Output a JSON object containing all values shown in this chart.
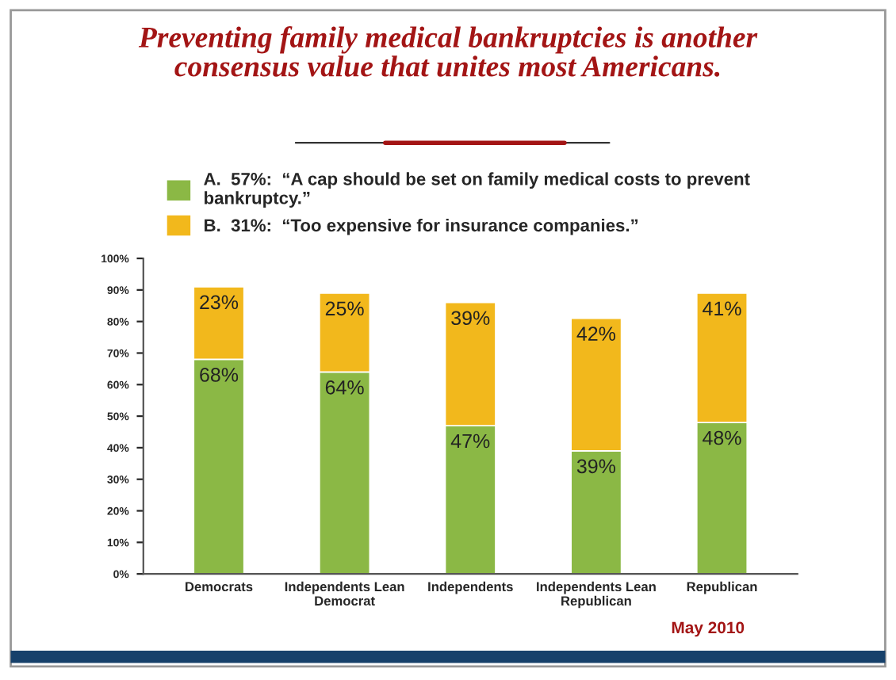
{
  "chart_data": {
    "type": "bar",
    "stacked": true,
    "title": "Preventing family medical bankruptcies is another\nconsensus value that unites most Americans.",
    "categories": [
      "Democrats",
      "Independents Lean\nDemocrat",
      "Independents",
      "Independents Lean\nRepublican",
      "Republican"
    ],
    "series": [
      {
        "name": "A.  57%:  “A cap should be set on family medical costs to prevent\nbankruptcy.”",
        "color": "#8bb845",
        "values": [
          68,
          64,
          47,
          39,
          48
        ],
        "value_labels": [
          "68%",
          "64%",
          "47%",
          "39%",
          "48%"
        ]
      },
      {
        "name": "B.  31%:  “Too expensive for insurance companies.”",
        "color": "#f2b81c",
        "values": [
          23,
          25,
          39,
          42,
          41
        ],
        "value_labels": [
          "23%",
          "25%",
          "39%",
          "42%",
          "41%"
        ]
      }
    ],
    "ylim": [
      0,
      100
    ],
    "yticks": [
      {
        "value": 0,
        "label": "0%"
      },
      {
        "value": 10,
        "label": "10%"
      },
      {
        "value": 20,
        "label": "20%"
      },
      {
        "value": 30,
        "label": "30%"
      },
      {
        "value": 40,
        "label": "40%"
      },
      {
        "value": 50,
        "label": "50%"
      },
      {
        "value": 60,
        "label": "60%"
      },
      {
        "value": 70,
        "label": "70%"
      },
      {
        "value": 80,
        "label": "80%"
      },
      {
        "value": 90,
        "label": "90%"
      },
      {
        "value": 100,
        "label": "100%"
      }
    ],
    "grid": false,
    "legend": "top",
    "annotations": [
      "May 2010"
    ]
  }
}
